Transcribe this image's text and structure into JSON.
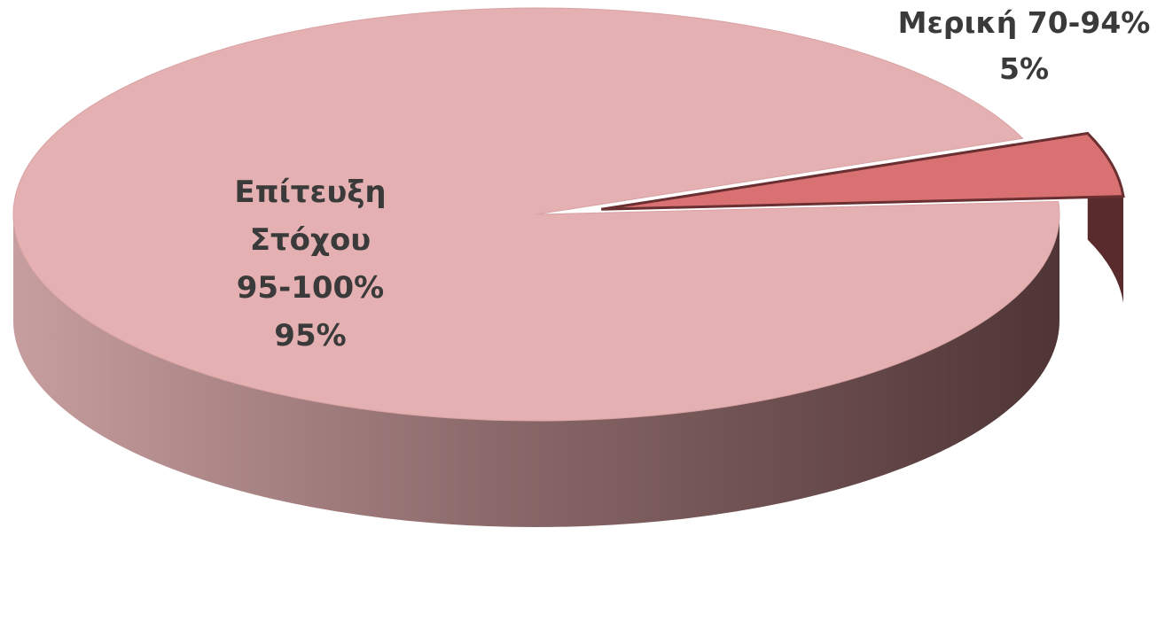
{
  "chart_data": {
    "type": "pie",
    "style": "3d-exploded",
    "slices": [
      {
        "label_lines": [
          "Επίτευξη",
          "Στόχου",
          "95-100%"
        ],
        "percent_label": "95%",
        "value": 95,
        "color": "#e4b0b1"
      },
      {
        "label_lines": [
          "Μερική 70-94%"
        ],
        "percent_label": "5%",
        "value": 5,
        "color": "#d97173",
        "exploded": true
      }
    ],
    "side_colors": {
      "main_light": "#c09a9b",
      "main_dark": "#5a3f40",
      "small_side": "#5a2b2d"
    },
    "label_color": "#3a3a3a"
  }
}
